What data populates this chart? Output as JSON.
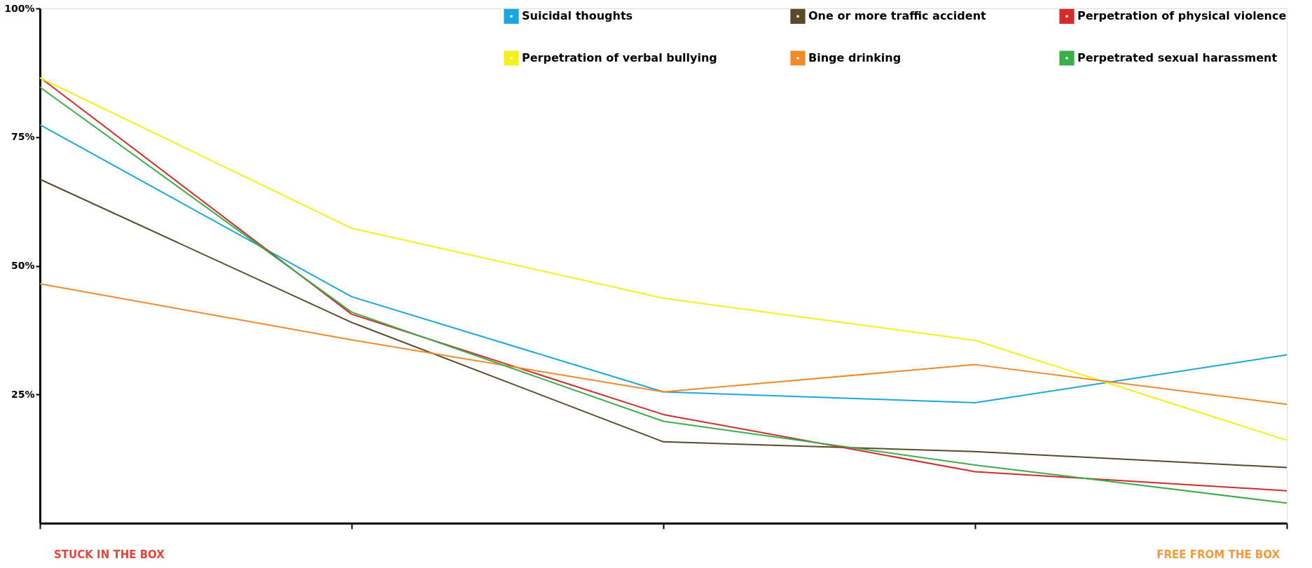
{
  "chart_data": {
    "type": "line",
    "categories": [
      null,
      null,
      null,
      null,
      null
    ],
    "series": [
      {
        "name": "Suicidal thoughts",
        "color": "#1aa7e0",
        "values": [
          77.4,
          44.0,
          25.5,
          23.4,
          32.7
        ]
      },
      {
        "name": "One or more traffic accident",
        "color": "#5a4a2a",
        "values": [
          66.8,
          39.0,
          15.8,
          13.9,
          10.8
        ]
      },
      {
        "name": "Perpetration of physical violence",
        "color": "#d42a2a",
        "values": [
          86.6,
          40.6,
          21.1,
          10.0,
          6.3
        ]
      },
      {
        "name": "Perpetration of verbal bullying",
        "color": "#f5f01a",
        "values": [
          86.5,
          57.3,
          43.7,
          35.5,
          16.1
        ]
      },
      {
        "name": "Binge drinking",
        "color": "#f28a2a",
        "values": [
          46.5,
          35.6,
          25.5,
          30.8,
          23.1
        ]
      },
      {
        "name": "Perpetrated sexual harassment",
        "color": "#3aae4a",
        "values": [
          84.7,
          41.0,
          19.8,
          11.3,
          3.9
        ]
      }
    ],
    "ylim": [
      0,
      100
    ],
    "yticks": [
      {
        "value": 25,
        "label": "25%"
      },
      {
        "value": 50,
        "label": "50%"
      },
      {
        "value": 75,
        "label": "75%"
      },
      {
        "value": 100,
        "label": "100%"
      }
    ],
    "tick_labels": "y",
    "grid": false,
    "legend": "top right",
    "marker": "none",
    "line_style": "solid",
    "annotations": [
      "STUCK IN THE BOX",
      "FREE FROM THE BOX"
    ]
  }
}
